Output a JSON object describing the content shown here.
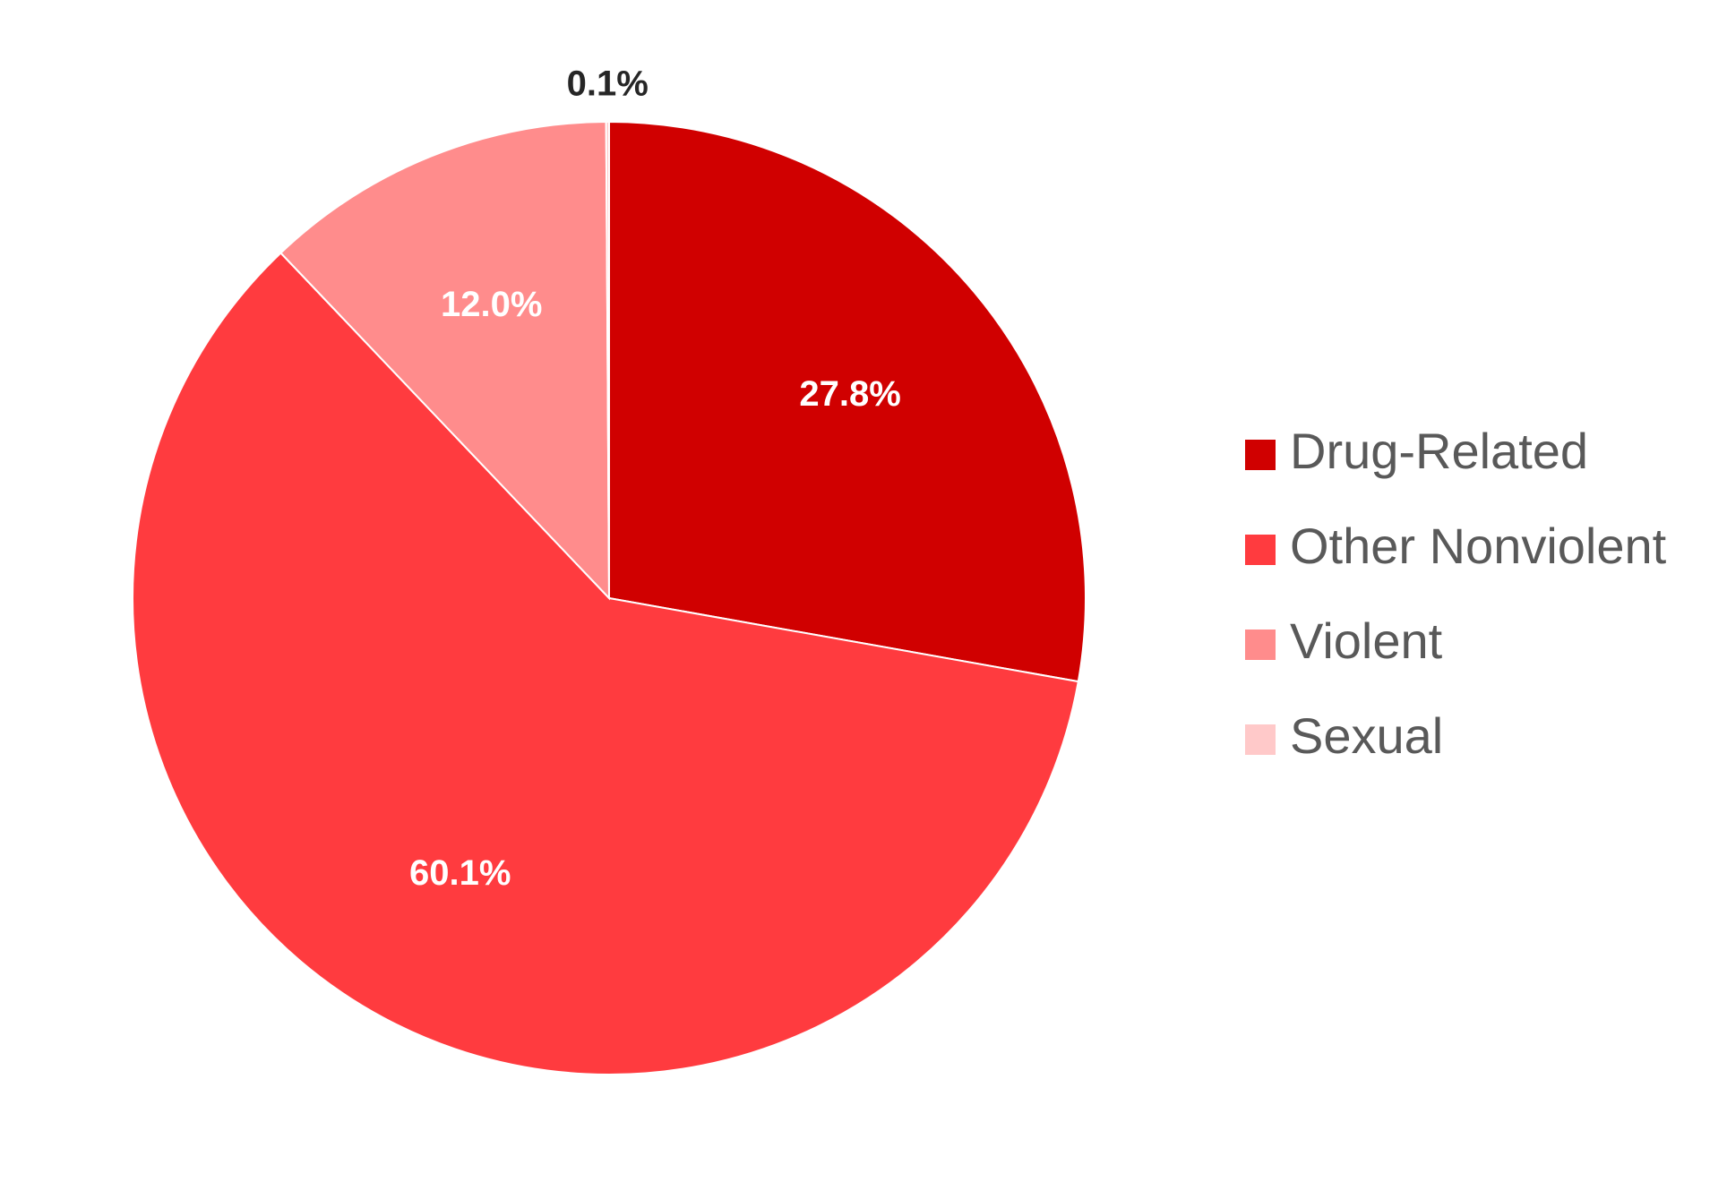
{
  "chart_data": {
    "type": "pie",
    "title": "",
    "start_angle_deg": 0,
    "direction": "clockwise",
    "slices": [
      {
        "label": "Drug-Related",
        "value": 27.8,
        "value_label": "27.8%",
        "color": "#D00000",
        "label_color": "#FFFFFF"
      },
      {
        "label": "Other Nonviolent",
        "value": 60.1,
        "value_label": "60.1%",
        "color": "#FF3B3F",
        "label_color": "#FFFFFF"
      },
      {
        "label": "Violent",
        "value": 12.0,
        "value_label": "12.0%",
        "color": "#FF8C8C",
        "label_color": "#FFFFFF"
      },
      {
        "label": "Sexual",
        "value": 0.1,
        "value_label": "0.1%",
        "color": "#FFC9C9",
        "label_color": "#262626"
      }
    ],
    "legend": {
      "position": "right",
      "items": [
        "Drug-Related",
        "Other Nonviolent",
        "Violent",
        "Sexual"
      ]
    }
  }
}
